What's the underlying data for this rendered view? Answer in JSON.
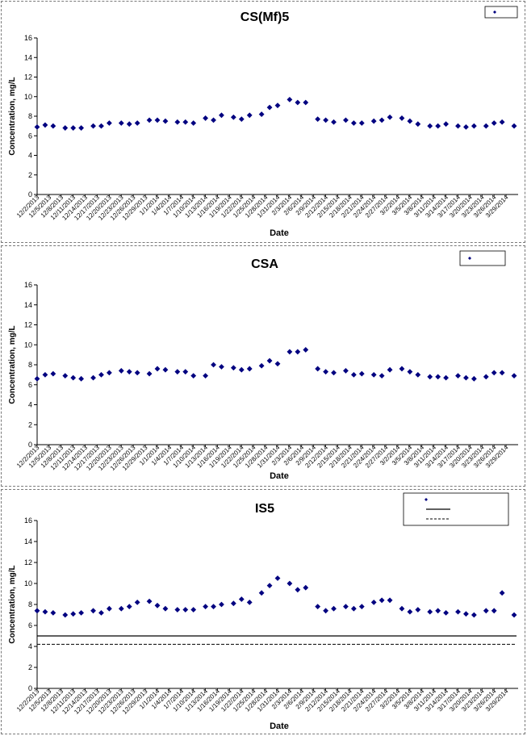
{
  "chart_data": [
    {
      "type": "scatter",
      "title": "CS(Mf)5",
      "xlabel": "Date",
      "ylabel": "Concentration, mg/L",
      "ylim": [
        0,
        16
      ],
      "yticks": [
        0,
        2,
        4,
        6,
        8,
        10,
        12,
        14,
        16
      ],
      "legend_placement": "top-right",
      "legend": [],
      "marker_color": "#000080",
      "x_tick_labels": [
        "12/2/2013",
        "12/5/2013",
        "12/8/2013",
        "12/11/2013",
        "12/14/2013",
        "12/17/2013",
        "12/20/2013",
        "12/23/2013",
        "12/26/2013",
        "12/29/2013",
        "1/1/2014",
        "1/4/2014",
        "1/7/2014",
        "1/10/2014",
        "1/13/2014",
        "1/16/2014",
        "1/19/2014",
        "1/22/2014",
        "1/25/2014",
        "1/28/2014",
        "1/31/2014",
        "2/3/2014",
        "2/6/2014",
        "2/9/2014",
        "2/12/2014",
        "2/15/2014",
        "2/18/2014",
        "2/21/2014",
        "2/24/2014",
        "2/27/2014",
        "3/2/2014",
        "3/5/2014",
        "3/8/2014",
        "3/11/2014",
        "3/14/2014",
        "3/17/2014",
        "3/20/2014",
        "3/23/2014",
        "3/26/2014",
        "3/29/2014"
      ],
      "reference_lines": [],
      "series": [
        {
          "x": [
            "12/2/2013",
            "12/4/2013",
            "12/6/2013",
            "12/9/2013",
            "12/11/2013",
            "12/13/2013",
            "12/16/2013",
            "12/18/2013",
            "12/20/2013",
            "12/23/2013",
            "12/25/2013",
            "12/27/2013",
            "12/30/2013",
            "1/1/2014",
            "1/3/2014",
            "1/6/2014",
            "1/8/2014",
            "1/10/2014",
            "1/13/2014",
            "1/15/2014",
            "1/17/2014",
            "1/20/2014",
            "1/22/2014",
            "1/24/2014",
            "1/27/2014",
            "1/29/2014",
            "1/31/2014",
            "2/3/2014",
            "2/5/2014",
            "2/7/2014",
            "2/10/2014",
            "2/12/2014",
            "2/14/2014",
            "2/17/2014",
            "2/19/2014",
            "2/21/2014",
            "2/24/2014",
            "2/26/2014",
            "2/28/2014",
            "3/3/2014",
            "3/5/2014",
            "3/7/2014",
            "3/10/2014",
            "3/12/2014",
            "3/14/2014",
            "3/17/2014",
            "3/19/2014",
            "3/21/2014",
            "3/24/2014",
            "3/26/2014",
            "3/28/2014",
            "3/31/2014"
          ],
          "y": [
            6.9,
            7.1,
            7.0,
            6.8,
            6.8,
            6.8,
            7.0,
            7.0,
            7.3,
            7.3,
            7.2,
            7.3,
            7.6,
            7.6,
            7.5,
            7.4,
            7.4,
            7.3,
            7.8,
            7.6,
            8.1,
            7.9,
            7.7,
            8.1,
            8.2,
            8.9,
            9.1,
            9.7,
            9.4,
            9.4,
            7.7,
            7.6,
            7.4,
            7.6,
            7.3,
            7.3,
            7.5,
            7.6,
            7.9,
            7.8,
            7.5,
            7.2,
            7.0,
            7.0,
            7.2,
            7.0,
            6.9,
            7.0,
            7.0,
            7.3,
            7.4,
            7.0
          ]
        }
      ]
    },
    {
      "type": "scatter",
      "title": "CSA",
      "xlabel": "Date",
      "ylabel": "Concentration, mg/L",
      "ylim": [
        0,
        16
      ],
      "yticks": [
        0,
        2,
        4,
        6,
        8,
        10,
        12,
        14,
        16
      ],
      "legend_placement": "top-right",
      "legend": [],
      "marker_color": "#000080",
      "x_tick_labels": [
        "12/2/2013",
        "12/5/2013",
        "12/8/2013",
        "12/11/2013",
        "12/14/2013",
        "12/17/2013",
        "12/20/2013",
        "12/23/2013",
        "12/26/2013",
        "12/29/2013",
        "1/1/2014",
        "1/4/2014",
        "1/7/2014",
        "1/10/2014",
        "1/13/2014",
        "1/16/2014",
        "1/19/2014",
        "1/22/2014",
        "1/25/2014",
        "1/28/2014",
        "1/31/2014",
        "2/3/2014",
        "2/6/2014",
        "2/9/2014",
        "2/12/2014",
        "2/15/2014",
        "2/18/2014",
        "2/21/2014",
        "2/24/2014",
        "2/27/2014",
        "3/2/2014",
        "3/5/2014",
        "3/8/2014",
        "3/11/2014",
        "3/14/2014",
        "3/17/2014",
        "3/20/2014",
        "3/23/2014",
        "3/26/2014",
        "3/29/2014"
      ],
      "reference_lines": [],
      "series": [
        {
          "x": [
            "12/2/2013",
            "12/4/2013",
            "12/6/2013",
            "12/9/2013",
            "12/11/2013",
            "12/13/2013",
            "12/16/2013",
            "12/18/2013",
            "12/20/2013",
            "12/23/2013",
            "12/25/2013",
            "12/27/2013",
            "12/30/2013",
            "1/1/2014",
            "1/3/2014",
            "1/6/2014",
            "1/8/2014",
            "1/10/2014",
            "1/13/2014",
            "1/15/2014",
            "1/17/2014",
            "1/20/2014",
            "1/22/2014",
            "1/24/2014",
            "1/27/2014",
            "1/29/2014",
            "1/31/2014",
            "2/3/2014",
            "2/5/2014",
            "2/7/2014",
            "2/10/2014",
            "2/12/2014",
            "2/14/2014",
            "2/17/2014",
            "2/19/2014",
            "2/21/2014",
            "2/24/2014",
            "2/26/2014",
            "2/28/2014",
            "3/3/2014",
            "3/5/2014",
            "3/7/2014",
            "3/10/2014",
            "3/12/2014",
            "3/14/2014",
            "3/17/2014",
            "3/19/2014",
            "3/21/2014",
            "3/24/2014",
            "3/26/2014",
            "3/28/2014",
            "3/31/2014"
          ],
          "y": [
            6.6,
            7.0,
            7.1,
            6.9,
            6.7,
            6.6,
            6.7,
            7.0,
            7.2,
            7.4,
            7.3,
            7.2,
            7.1,
            7.6,
            7.5,
            7.3,
            7.3,
            6.9,
            6.9,
            8.0,
            7.8,
            7.7,
            7.5,
            7.6,
            7.9,
            8.4,
            8.1,
            9.3,
            9.3,
            9.5,
            7.6,
            7.3,
            7.2,
            7.4,
            7.0,
            7.1,
            7.0,
            6.9,
            7.5,
            7.6,
            7.3,
            7.0,
            6.8,
            6.8,
            6.7,
            6.9,
            6.7,
            6.6,
            6.8,
            7.2,
            7.2,
            6.9
          ]
        }
      ]
    },
    {
      "type": "scatter",
      "title": "IS5",
      "xlabel": "Date",
      "ylabel": "Concentration, mg/L",
      "ylim": [
        0,
        16
      ],
      "yticks": [
        0,
        2,
        4,
        6,
        8,
        10,
        12,
        14,
        16
      ],
      "legend_placement": "top-right",
      "legend": [],
      "marker_color": "#000080",
      "x_tick_labels": [
        "12/2/2013",
        "12/5/2013",
        "12/8/2013",
        "12/11/2013",
        "12/14/2013",
        "12/17/2013",
        "12/20/2013",
        "12/23/2013",
        "12/26/2013",
        "12/29/2013",
        "1/1/2014",
        "1/4/2014",
        "1/7/2014",
        "1/10/2014",
        "1/13/2014",
        "1/16/2014",
        "1/19/2014",
        "1/22/2014",
        "1/25/2014",
        "1/28/2014",
        "1/31/2014",
        "2/3/2014",
        "2/6/2014",
        "2/9/2014",
        "2/12/2014",
        "2/15/2014",
        "2/18/2014",
        "2/21/2014",
        "2/24/2014",
        "2/27/2014",
        "3/2/2014",
        "3/5/2014",
        "3/8/2014",
        "3/11/2014",
        "3/14/2014",
        "3/17/2014",
        "3/20/2014",
        "3/23/2014",
        "3/26/2014",
        "3/29/2014"
      ],
      "reference_lines": [
        {
          "y": 5.0,
          "style": "solid"
        },
        {
          "y": 4.2,
          "style": "dashed"
        }
      ],
      "series": [
        {
          "x": [
            "12/2/2013",
            "12/4/2013",
            "12/6/2013",
            "12/9/2013",
            "12/11/2013",
            "12/13/2013",
            "12/16/2013",
            "12/18/2013",
            "12/20/2013",
            "12/23/2013",
            "12/25/2013",
            "12/27/2013",
            "12/30/2013",
            "1/1/2014",
            "1/3/2014",
            "1/6/2014",
            "1/8/2014",
            "1/10/2014",
            "1/13/2014",
            "1/15/2014",
            "1/17/2014",
            "1/20/2014",
            "1/22/2014",
            "1/24/2014",
            "1/27/2014",
            "1/29/2014",
            "1/31/2014",
            "2/3/2014",
            "2/5/2014",
            "2/7/2014",
            "2/10/2014",
            "2/12/2014",
            "2/14/2014",
            "2/17/2014",
            "2/19/2014",
            "2/21/2014",
            "2/24/2014",
            "2/26/2014",
            "2/28/2014",
            "3/3/2014",
            "3/5/2014",
            "3/7/2014",
            "3/10/2014",
            "3/12/2014",
            "3/14/2014",
            "3/17/2014",
            "3/19/2014",
            "3/21/2014",
            "3/24/2014",
            "3/26/2014",
            "3/28/2014",
            "3/31/2014"
          ],
          "y": [
            7.4,
            7.3,
            7.2,
            7.0,
            7.1,
            7.2,
            7.4,
            7.2,
            7.6,
            7.6,
            7.8,
            8.2,
            8.3,
            7.9,
            7.6,
            7.5,
            7.5,
            7.5,
            7.8,
            7.8,
            8.0,
            8.1,
            8.5,
            8.2,
            9.1,
            9.8,
            10.5,
            10.0,
            9.4,
            9.6,
            7.8,
            7.4,
            7.6,
            7.8,
            7.6,
            7.8,
            8.2,
            8.4,
            8.4,
            7.6,
            7.3,
            7.5,
            7.3,
            7.4,
            7.2,
            7.3,
            7.1,
            7.0,
            7.4,
            7.4,
            9.1,
            7.0
          ]
        }
      ]
    }
  ]
}
